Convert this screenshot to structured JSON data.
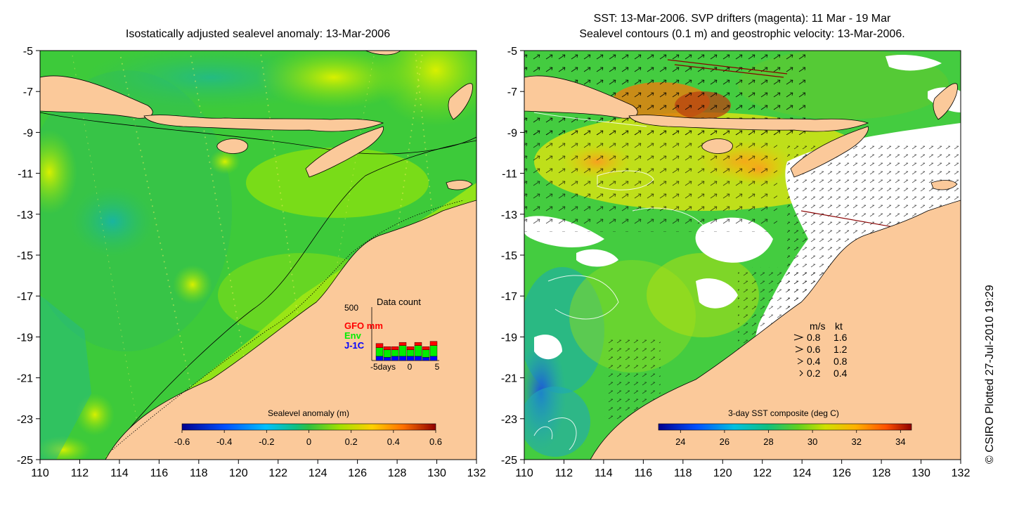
{
  "left_panel": {
    "title": "Isostatically adjusted sealevel anomaly: 13-Mar-2006",
    "colorbar": {
      "label": "Sealevel anomaly (m)",
      "ticks": [
        "-0.6",
        "-0.4",
        "-0.2",
        "0",
        "0.2",
        "0.4",
        "0.6"
      ],
      "range": [
        -0.6,
        0.6
      ]
    },
    "data_count": {
      "title": "Data count",
      "y_max_label": "500",
      "legend": [
        {
          "label": "GFO mm",
          "color": "#ff0000"
        },
        {
          "label": "Env",
          "color": "#00ee00"
        },
        {
          "label": "J-1C",
          "color": "#0000ff"
        }
      ],
      "x_labels": [
        "-5days",
        "0",
        "5"
      ],
      "bars": [
        {
          "j1c": 40,
          "env": 80,
          "gfo": 40
        },
        {
          "j1c": 30,
          "env": 70,
          "gfo": 30
        },
        {
          "j1c": 40,
          "env": 60,
          "gfo": 30
        },
        {
          "j1c": 40,
          "env": 100,
          "gfo": 30
        },
        {
          "j1c": 40,
          "env": 60,
          "gfo": 30
        },
        {
          "j1c": 40,
          "env": 100,
          "gfo": 30
        },
        {
          "j1c": 30,
          "env": 70,
          "gfo": 30
        },
        {
          "j1c": 40,
          "env": 100,
          "gfo": 40
        }
      ]
    }
  },
  "right_panel": {
    "title_line1": "SST: 13-Mar-2006. SVP drifters (magenta): 11 Mar - 19 Mar",
    "title_line2": "Sealevel contours (0.1 m) and geostrophic velocity: 13-Mar-2006.",
    "colorbar": {
      "label": "3-day SST composite (deg C)",
      "ticks": [
        "24",
        "26",
        "28",
        "30",
        "32",
        "34"
      ],
      "range": [
        23,
        34.5
      ]
    },
    "velocity_legend": {
      "header_ms": "m/s",
      "header_kt": "kt",
      "rows": [
        {
          "ms": "0.8",
          "kt": "1.6"
        },
        {
          "ms": "0.6",
          "kt": "1.2"
        },
        {
          "ms": "0.4",
          "kt": "0.8"
        },
        {
          "ms": "0.2",
          "kt": "0.4"
        }
      ]
    }
  },
  "axes": {
    "x_ticks": [
      "110",
      "112",
      "114",
      "116",
      "118",
      "120",
      "122",
      "124",
      "126",
      "128",
      "130",
      "132"
    ],
    "y_ticks": [
      "-5",
      "-7",
      "-9",
      "-11",
      "-13",
      "-15",
      "-17",
      "-19",
      "-21",
      "-23",
      "-25"
    ],
    "lon_range": [
      110,
      132
    ],
    "lat_range": [
      -25,
      -5
    ]
  },
  "copyright": "© CSIRO Plotted 27-Jul-2010 19:29",
  "colors": {
    "land": "#fbc99a",
    "sea_green": "#33cc44",
    "sea_light": "#88e011",
    "sea_teal": "#11b88a",
    "cloud": "#ffffff"
  }
}
